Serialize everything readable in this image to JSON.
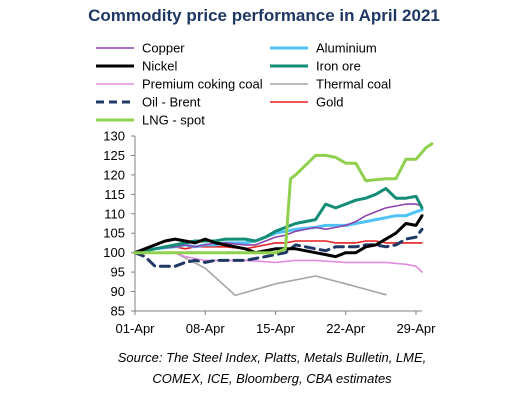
{
  "chart_data": {
    "type": "line",
    "title": "Commodity price performance in April 2021",
    "source_lines": [
      "Source: The Steel Index, Platts, Metals Bulletin, LME,",
      "COMEX, ICE, Bloomberg, CBA estimates"
    ],
    "xlabel": "",
    "ylabel": "",
    "x_domain_days": [
      1,
      29.6
    ],
    "x_ticks": [
      {
        "label": "01-Apr",
        "day": 1
      },
      {
        "label": "08-Apr",
        "day": 8
      },
      {
        "label": "15-Apr",
        "day": 15
      },
      {
        "label": "22-Apr",
        "day": 22
      },
      {
        "label": "29-Apr",
        "day": 29
      }
    ],
    "ylim": [
      85,
      130
    ],
    "y_ticks": [
      85,
      90,
      95,
      100,
      105,
      110,
      115,
      120,
      125,
      130
    ],
    "grid": false,
    "legend_position": "top",
    "series": [
      {
        "name": "Copper",
        "color": "#8e44ad",
        "dash": "solid",
        "points": [
          [
            1,
            100
          ],
          [
            2,
            100.5
          ],
          [
            3,
            101
          ],
          [
            5,
            101.5
          ],
          [
            6,
            102
          ],
          [
            7,
            101.5
          ],
          [
            8,
            102
          ],
          [
            9,
            102.5
          ],
          [
            10,
            102.5
          ],
          [
            12,
            102
          ],
          [
            13,
            102
          ],
          [
            14,
            103
          ],
          [
            15,
            104
          ],
          [
            16,
            104.5
          ],
          [
            17,
            105.5
          ],
          [
            19,
            106.5
          ],
          [
            20,
            106
          ],
          [
            21,
            106.5
          ],
          [
            22,
            107
          ],
          [
            23,
            108
          ],
          [
            24,
            109.5
          ],
          [
            25,
            110.5
          ],
          [
            26,
            111.5
          ],
          [
            27,
            112
          ],
          [
            28,
            112.5
          ],
          [
            29,
            112.5
          ],
          [
            29.6,
            112
          ]
        ]
      },
      {
        "name": "Aluminium",
        "color": "#4fc3f7",
        "dash": "solid",
        "points": [
          [
            1,
            100
          ],
          [
            2,
            100.5
          ],
          [
            3,
            101
          ],
          [
            5,
            101.5
          ],
          [
            6,
            102
          ],
          [
            7,
            101.5
          ],
          [
            8,
            102
          ],
          [
            9,
            102
          ],
          [
            10,
            102.5
          ],
          [
            12,
            102.5
          ],
          [
            13,
            103
          ],
          [
            14,
            104
          ],
          [
            15,
            105
          ],
          [
            16,
            105.5
          ],
          [
            17,
            106
          ],
          [
            19,
            106.5
          ],
          [
            20,
            107
          ],
          [
            21,
            107
          ],
          [
            22,
            107
          ],
          [
            23,
            107.5
          ],
          [
            24,
            108
          ],
          [
            25,
            108.5
          ],
          [
            26,
            109
          ],
          [
            27,
            109.5
          ],
          [
            28,
            109.5
          ],
          [
            29,
            110.5
          ],
          [
            29.6,
            111
          ]
        ]
      },
      {
        "name": "Nickel",
        "color": "#000000",
        "dash": "solid",
        "points": [
          [
            1,
            100
          ],
          [
            2,
            101
          ],
          [
            3,
            102
          ],
          [
            4,
            103
          ],
          [
            5,
            103.5
          ],
          [
            6,
            103
          ],
          [
            7,
            102.5
          ],
          [
            8,
            103.5
          ],
          [
            9,
            102.5
          ],
          [
            10,
            102
          ],
          [
            12,
            101
          ],
          [
            13,
            100
          ],
          [
            14,
            100.5
          ],
          [
            15,
            101
          ],
          [
            16,
            101
          ],
          [
            17,
            101
          ],
          [
            19,
            100
          ],
          [
            20,
            99.5
          ],
          [
            21,
            99
          ],
          [
            22,
            100
          ],
          [
            23,
            100
          ],
          [
            24,
            101.5
          ],
          [
            25,
            102
          ],
          [
            26,
            103.5
          ],
          [
            27,
            105
          ],
          [
            28,
            107.5
          ],
          [
            29,
            107
          ],
          [
            29.6,
            109.5
          ]
        ]
      },
      {
        "name": "Iron ore",
        "color": "#138d75",
        "dash": "solid",
        "points": [
          [
            1,
            100
          ],
          [
            2,
            100.5
          ],
          [
            3,
            101
          ],
          [
            5,
            102
          ],
          [
            6,
            102.5
          ],
          [
            7,
            103
          ],
          [
            8,
            103
          ],
          [
            9,
            103
          ],
          [
            10,
            103.5
          ],
          [
            12,
            103.5
          ],
          [
            13,
            103
          ],
          [
            14,
            104
          ],
          [
            15,
            105.5
          ],
          [
            16,
            106.5
          ],
          [
            17,
            107.5
          ],
          [
            19,
            108.5
          ],
          [
            20,
            112.5
          ],
          [
            21,
            111.5
          ],
          [
            22,
            112.5
          ],
          [
            23,
            113.5
          ],
          [
            24,
            114
          ],
          [
            25,
            115
          ],
          [
            26,
            116.5
          ],
          [
            27,
            114
          ],
          [
            28,
            114
          ],
          [
            29,
            114.5
          ],
          [
            29.6,
            111.5
          ]
        ]
      },
      {
        "name": "Premium coking coal",
        "color": "#e08ce0",
        "dash": "solid",
        "points": [
          [
            1,
            100
          ],
          [
            5,
            100
          ],
          [
            6,
            99
          ],
          [
            8,
            98
          ],
          [
            12,
            98
          ],
          [
            15,
            97.5
          ],
          [
            17,
            98
          ],
          [
            19,
            98
          ],
          [
            22,
            97.5
          ],
          [
            26,
            97.5
          ],
          [
            28,
            97
          ],
          [
            29,
            96.5
          ],
          [
            29.6,
            95
          ]
        ]
      },
      {
        "name": "Thermal coal",
        "color": "#a6a6a6",
        "dash": "solid",
        "points": [
          [
            1,
            100
          ],
          [
            5,
            100
          ],
          [
            8,
            96
          ],
          [
            11,
            89
          ],
          [
            15,
            92
          ],
          [
            19,
            94
          ],
          [
            22,
            92
          ],
          [
            26,
            89.2
          ]
        ]
      },
      {
        "name": "Oil - Brent",
        "color": "#1f3864",
        "dash": "dashed",
        "points": [
          [
            1,
            100
          ],
          [
            2,
            99
          ],
          [
            3,
            96.5
          ],
          [
            4,
            96.5
          ],
          [
            5,
            96.5
          ],
          [
            6,
            97.5
          ],
          [
            7,
            98
          ],
          [
            8,
            97.5
          ],
          [
            9,
            98
          ],
          [
            10,
            98
          ],
          [
            12,
            98
          ],
          [
            13,
            98.5
          ],
          [
            14,
            99
          ],
          [
            15,
            99.5
          ],
          [
            16,
            100
          ],
          [
            17,
            102
          ],
          [
            19,
            101
          ],
          [
            20,
            100.5
          ],
          [
            21,
            101.5
          ],
          [
            22,
            101.5
          ],
          [
            23,
            101.5
          ],
          [
            24,
            102
          ],
          [
            25,
            102
          ],
          [
            26,
            101.5
          ],
          [
            27,
            102
          ],
          [
            28,
            103.5
          ],
          [
            29,
            104
          ],
          [
            29.6,
            106
          ]
        ]
      },
      {
        "name": "Gold",
        "color": "#e62020",
        "dash": "solid",
        "points": [
          [
            1,
            100
          ],
          [
            2,
            100.5
          ],
          [
            3,
            101
          ],
          [
            5,
            101.5
          ],
          [
            6,
            101
          ],
          [
            7,
            101.5
          ],
          [
            8,
            101.5
          ],
          [
            9,
            101.5
          ],
          [
            10,
            101.5
          ],
          [
            12,
            101
          ],
          [
            13,
            101.5
          ],
          [
            14,
            102
          ],
          [
            15,
            102.5
          ],
          [
            16,
            102.5
          ],
          [
            17,
            103
          ],
          [
            19,
            103
          ],
          [
            20,
            103
          ],
          [
            21,
            102.5
          ],
          [
            22,
            102.5
          ],
          [
            23,
            102.5
          ],
          [
            24,
            103
          ],
          [
            25,
            103
          ],
          [
            26,
            102.5
          ],
          [
            27,
            102.5
          ],
          [
            28,
            102.5
          ],
          [
            29,
            102.5
          ],
          [
            29.6,
            102.5
          ]
        ]
      },
      {
        "name": "LNG - spot",
        "color": "#8fd14f",
        "dash": "solid",
        "points": [
          [
            1,
            100
          ],
          [
            5,
            100
          ],
          [
            8,
            100
          ],
          [
            12,
            100
          ],
          [
            15,
            100
          ],
          [
            15.5,
            100.5
          ],
          [
            16,
            101
          ],
          [
            16.5,
            119
          ],
          [
            17,
            120
          ],
          [
            19,
            125
          ],
          [
            20,
            125
          ],
          [
            21,
            124.5
          ],
          [
            22,
            123
          ],
          [
            23,
            123
          ],
          [
            24,
            118.5
          ],
          [
            26,
            119
          ],
          [
            27,
            119
          ],
          [
            28,
            124
          ],
          [
            29,
            124
          ],
          [
            30,
            127
          ],
          [
            30.6,
            128
          ]
        ]
      }
    ]
  }
}
